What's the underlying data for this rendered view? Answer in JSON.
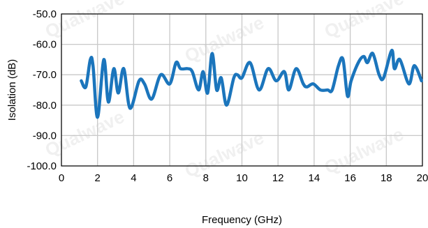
{
  "watermark": "Qualwave",
  "chart_data": {
    "type": "line",
    "xlabel": "Frequency (GHz)",
    "ylabel": "Isolation (dB)",
    "xlim": [
      0,
      20
    ],
    "ylim": [
      -100,
      -50
    ],
    "x_ticks": [
      0,
      2,
      4,
      6,
      8,
      10,
      12,
      14,
      16,
      18,
      20
    ],
    "x_tick_labels": [
      "0",
      "2",
      "4",
      "6",
      "8",
      "10",
      "12",
      "14",
      "16",
      "18",
      "20"
    ],
    "y_ticks": [
      -50,
      -60,
      -70,
      -80,
      -90,
      -100
    ],
    "y_tick_labels": [
      "-50.0",
      "-60.0",
      "-70.0",
      "-80.0",
      "-90.0",
      "-100.0"
    ],
    "grid": true,
    "line_color": "#1b75bc",
    "grid_color": "#c8c8c8",
    "series": [
      {
        "x": [
          1.1,
          1.35,
          1.6,
          1.75,
          2.0,
          2.35,
          2.6,
          2.9,
          3.15,
          3.45,
          3.8,
          4.3,
          4.6,
          5.0,
          5.5,
          6.0,
          6.35,
          6.6,
          7.0,
          7.25,
          7.6,
          7.85,
          8.1,
          8.35,
          8.6,
          8.85,
          9.15,
          9.55,
          9.75,
          10.0,
          10.45,
          10.95,
          11.45,
          11.9,
          12.35,
          12.6,
          13.0,
          13.4,
          13.6,
          13.95,
          14.35,
          14.75,
          15.0,
          15.35,
          15.6,
          15.85,
          16.05,
          16.45,
          16.75,
          16.95,
          17.25,
          17.6,
          17.85,
          18.3,
          18.45,
          18.75,
          19.25,
          19.55,
          19.95
        ],
        "y": [
          -72,
          -74,
          -65,
          -67,
          -84,
          -65,
          -79,
          -68,
          -76,
          -68,
          -81,
          -72,
          -73,
          -78,
          -70,
          -73,
          -66,
          -68,
          -68,
          -69,
          -75,
          -69,
          -76,
          -63,
          -75,
          -71,
          -80,
          -71,
          -70,
          -71,
          -66,
          -75,
          -68,
          -72,
          -69,
          -75,
          -68,
          -73,
          -74,
          -73,
          -75,
          -75,
          -75,
          -67,
          -65,
          -77,
          -72,
          -66,
          -64,
          -66,
          -63,
          -70,
          -71,
          -62,
          -68,
          -65,
          -73,
          -67,
          -72
        ]
      }
    ]
  }
}
